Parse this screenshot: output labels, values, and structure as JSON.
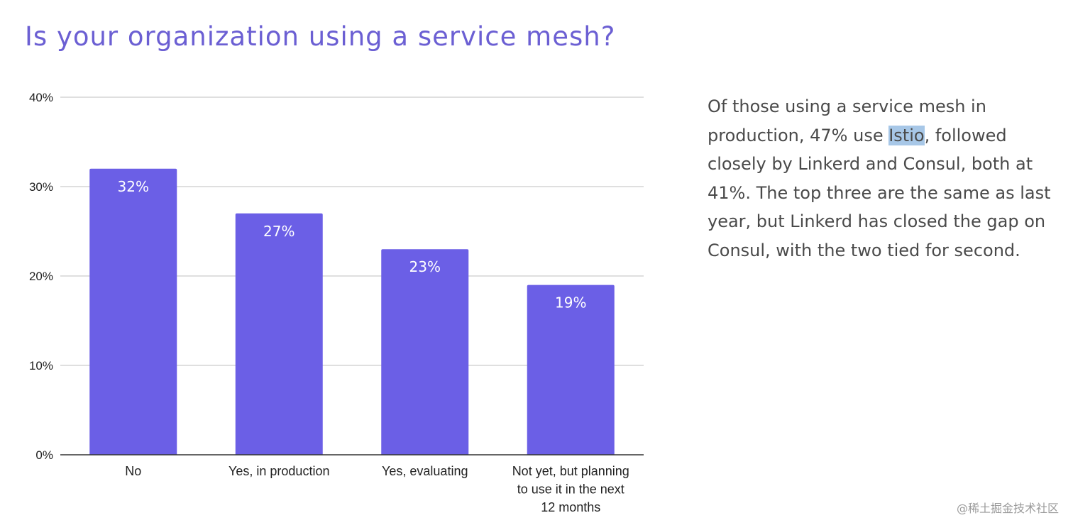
{
  "title": "Is your organization using a service mesh?",
  "chart_data": {
    "type": "bar",
    "categories": [
      [
        "No"
      ],
      [
        "Yes, in production"
      ],
      [
        "Yes, evaluating"
      ],
      [
        "Not yet, but planning",
        "to use it in the next",
        "12 months"
      ]
    ],
    "values": [
      32,
      27,
      23,
      19
    ],
    "data_labels": [
      "32%",
      "27%",
      "23%",
      "19%"
    ],
    "y_ticks": [
      "0%",
      "10%",
      "20%",
      "30%",
      "40%"
    ],
    "y_tick_values": [
      0,
      10,
      20,
      30,
      40
    ],
    "ylim": [
      0,
      40
    ],
    "grid": true,
    "bar_color": "#6b5fe6"
  },
  "side_text": {
    "before": "Of those using a service mesh in production, 47% use ",
    "highlight": "Istio",
    "after": ", followed closely by Linkerd and Consul, both at 41%. The top three are the same as last year, but Linkerd has closed the gap on Consul, with the two tied for second."
  },
  "watermark": "@稀土掘金技术社区",
  "colors": {
    "title": "#6b5fd3",
    "bar": "#6b5fe6",
    "grid": "#cccccc",
    "axis": "#333333",
    "highlight": "#a7c7e7"
  }
}
